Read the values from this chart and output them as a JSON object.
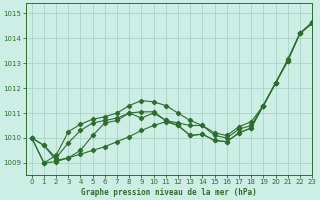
{
  "title": "Graphe pression niveau de la mer (hPa)",
  "bg_color": "#cceee4",
  "grid_color": "#aad4c8",
  "line_color": "#2d6e2d",
  "xlim": [
    -0.5,
    23
  ],
  "ylim": [
    1008.5,
    1015.4
  ],
  "yticks": [
    1009,
    1010,
    1011,
    1012,
    1013,
    1014,
    1015
  ],
  "xticks": [
    0,
    1,
    2,
    3,
    4,
    5,
    6,
    7,
    8,
    9,
    10,
    11,
    12,
    13,
    14,
    15,
    16,
    17,
    18,
    19,
    20,
    21,
    22,
    23
  ],
  "series": [
    [
      1010.0,
      1009.7,
      1009.1,
      1009.2,
      1009.5,
      1010.1,
      1010.6,
      1010.7,
      1011.0,
      1010.8,
      1011.0,
      1010.7,
      1010.5,
      1010.1,
      1010.15,
      1009.9,
      1009.85,
      1010.2,
      1010.4,
      1011.3,
      1012.2,
      1013.1,
      1014.2,
      1014.6
    ],
    [
      1010.0,
      1009.7,
      1009.2,
      1009.8,
      1010.3,
      1010.6,
      1010.7,
      1010.8,
      1011.0,
      1011.05,
      1011.05,
      1010.7,
      1010.6,
      1010.5,
      1010.5,
      1010.1,
      1010.0,
      1010.35,
      1010.5,
      1011.3,
      1012.2,
      1013.1,
      1014.2,
      1014.6
    ],
    [
      1010.0,
      1009.0,
      1009.05,
      1009.2,
      1009.35,
      1009.5,
      1009.65,
      1009.85,
      1010.05,
      1010.3,
      1010.5,
      1010.65,
      1010.5,
      1010.1,
      1010.15,
      1009.9,
      1009.85,
      1010.2,
      1010.4,
      1011.3,
      1012.2,
      1013.1,
      1014.2,
      1014.6
    ],
    [
      1010.0,
      1009.0,
      1009.3,
      1010.25,
      1010.55,
      1010.75,
      1010.85,
      1011.0,
      1011.3,
      1011.5,
      1011.45,
      1011.3,
      1011.0,
      1010.7,
      1010.5,
      1010.2,
      1010.1,
      1010.45,
      1010.65,
      1011.3,
      1012.2,
      1013.15,
      1014.2,
      1014.65
    ]
  ]
}
